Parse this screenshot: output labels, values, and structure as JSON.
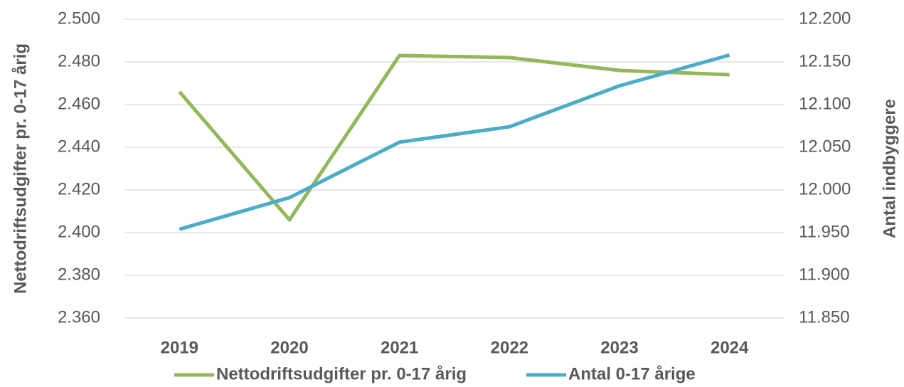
{
  "chart_data": {
    "type": "line",
    "categories": [
      "2019",
      "2020",
      "2021",
      "2022",
      "2023",
      "2024"
    ],
    "series": [
      {
        "name": "Nettodriftsudgifter pr. 0-17 årig",
        "color": "#93b75a",
        "values": [
          2466,
          2406,
          2483,
          2482,
          2476,
          2474
        ]
      },
      {
        "name": "Antal 0-17 årige",
        "color": "#4bacc6",
        "axis": "y2",
        "values": [
          11954,
          11991,
          12056,
          12074,
          12122,
          12158
        ]
      }
    ],
    "ylabel": "Nettodriftsudgifter pr. 0-17 årig",
    "y2label": "Antal indbyggere",
    "ylim": [
      2360,
      2500
    ],
    "yticks": [
      {
        "value": 2360,
        "label": "2.360"
      },
      {
        "value": 2380,
        "label": "2.380"
      },
      {
        "value": 2400,
        "label": "2.400"
      },
      {
        "value": 2420,
        "label": "2.420"
      },
      {
        "value": 2440,
        "label": "2.440"
      },
      {
        "value": 2460,
        "label": "2.460"
      },
      {
        "value": 2480,
        "label": "2.480"
      },
      {
        "value": 2500,
        "label": "2.500"
      }
    ],
    "y2lim": [
      11850,
      12200
    ],
    "y2ticks": [
      {
        "value": 11850,
        "label": "11.850"
      },
      {
        "value": 11900,
        "label": "11.900"
      },
      {
        "value": 11950,
        "label": "11.950"
      },
      {
        "value": 12000,
        "label": "12.000"
      },
      {
        "value": 12050,
        "label": "12.050"
      },
      {
        "value": 12100,
        "label": "12.100"
      },
      {
        "value": 12150,
        "label": "12.150"
      },
      {
        "value": 12200,
        "label": "12.200"
      }
    ],
    "grid": true,
    "legend": "bottom"
  }
}
